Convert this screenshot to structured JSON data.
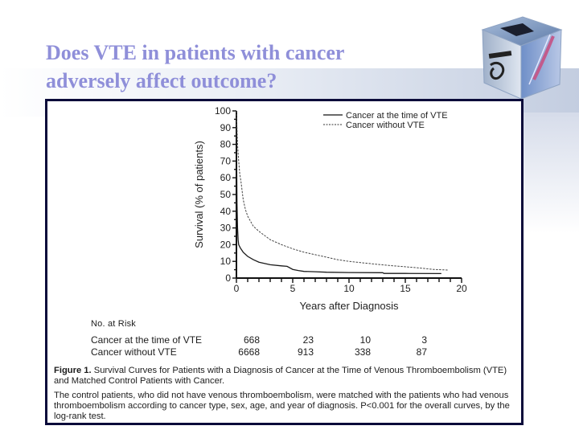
{
  "slide": {
    "title_line1": "Does VTE in patients with cancer",
    "title_line2": "adversely affect outcome?",
    "title_color": "#8f8fd9",
    "frame_color": "#0b0b3a",
    "decoration": "medical-instruments-cube-icon"
  },
  "chart_data": {
    "type": "line",
    "title": "",
    "xlabel": "Years after Diagnosis",
    "ylabel": "Survival (% of patients)",
    "xlim": [
      0,
      20
    ],
    "ylim": [
      0,
      100
    ],
    "xticks": [
      0,
      5,
      10,
      15,
      20
    ],
    "yticks": [
      0,
      10,
      20,
      30,
      40,
      50,
      60,
      70,
      80,
      90,
      100
    ],
    "grid": false,
    "legend_position": "top-right",
    "series": [
      {
        "name": "Cancer at the time of VTE",
        "style": "solid",
        "x": [
          0,
          0.02,
          0.05,
          0.1,
          0.15,
          0.2,
          0.35,
          0.6,
          1,
          1.5,
          2,
          3,
          4,
          4.5,
          5,
          5.5,
          6,
          7,
          8,
          10,
          13,
          13.1,
          15,
          18.2
        ],
        "y": [
          100,
          70,
          45,
          30,
          23,
          20,
          18,
          15.5,
          13,
          11,
          9.5,
          8,
          7.3,
          7,
          5.2,
          4.5,
          4,
          3.8,
          3.5,
          3.3,
          3.2,
          2.8,
          2.8,
          2.7
        ]
      },
      {
        "name": "Cancer without VTE",
        "style": "dashed",
        "x": [
          0,
          0.05,
          0.1,
          0.2,
          0.3,
          0.4,
          0.6,
          0.8,
          1,
          1.5,
          2,
          2.5,
          3,
          4,
          5,
          6,
          7,
          8,
          9,
          10,
          11,
          12.5,
          14,
          16,
          17.5,
          18.8
        ],
        "y": [
          100,
          90,
          80,
          70,
          62,
          58,
          47,
          41,
          37,
          31,
          28,
          25.5,
          23,
          20,
          17.5,
          15.5,
          14,
          12.5,
          11,
          10,
          9.3,
          8.2,
          7.3,
          6.2,
          5.2,
          4.8
        ]
      }
    ],
    "legend": [
      "Cancer at the time of VTE",
      "Cancer without VTE"
    ]
  },
  "risk_table": {
    "heading": "No. at Risk",
    "rows": [
      {
        "label": "Cancer at the time of VTE",
        "values": [
          "668",
          "23",
          "10",
          "3"
        ]
      },
      {
        "label": "Cancer without VTE",
        "values": [
          "6668",
          "913",
          "338",
          "87"
        ]
      }
    ]
  },
  "caption": {
    "bold": "Figure 1.",
    "title": "Survival Curves for Patients with a Diagnosis of Cancer at the Time of Venous Thromboembolism (VTE) and Matched Control Patients with Cancer.",
    "body": "The control patients, who did not have venous thromboembolism, were matched with the patients who had venous thromboembolism according to cancer type, sex, age, and year of diagnosis. P<0.001 for the overall curves, by the log-rank test."
  }
}
